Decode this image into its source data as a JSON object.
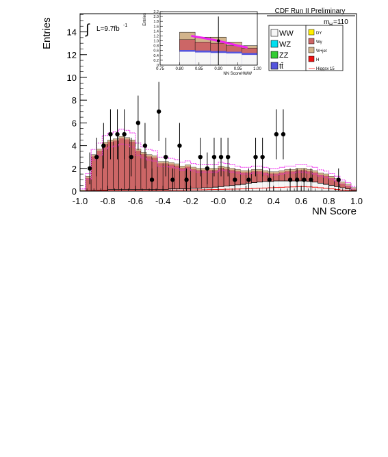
{
  "chart_data": {
    "type": "histogram",
    "header": "CDF Run II Preliminary",
    "xlabel": "NN Score",
    "ylabel": "Entries",
    "xlim": [
      -1.0,
      1.0
    ],
    "ylim": [
      0,
      15.6
    ],
    "x_ticks": [
      "-1.0",
      "-0.8",
      "-0.6",
      "-0.4",
      "-0.2",
      "-0.0",
      "0.2",
      "0.4",
      "0.6",
      "0.8",
      "1.0"
    ],
    "y_ticks": [
      "0",
      "2",
      "4",
      "6",
      "8",
      "10",
      "12",
      "14"
    ],
    "luminosity_label": "L=9.7fb",
    "luminosity_sup": "-1",
    "mass_label": "m",
    "mass_sub": "H",
    "mass_value": "=110",
    "bin_edges": [
      -1.0,
      -0.96,
      -0.92,
      -0.88,
      -0.84,
      -0.8,
      -0.76,
      -0.72,
      -0.68,
      -0.64,
      -0.6,
      -0.56,
      -0.52,
      -0.48,
      -0.44,
      -0.4,
      -0.36,
      -0.32,
      -0.28,
      -0.24,
      -0.2,
      -0.16,
      -0.12,
      -0.08,
      -0.04,
      0.0,
      0.04,
      0.08,
      0.12,
      0.16,
      0.2,
      0.24,
      0.28,
      0.32,
      0.36,
      0.4,
      0.44,
      0.48,
      0.52,
      0.56,
      0.6,
      0.64,
      0.68,
      0.72,
      0.76,
      0.8,
      0.84,
      0.88,
      0.92,
      0.96,
      1.0
    ],
    "stack_total": [
      0.1,
      1.3,
      3.2,
      3.7,
      4.3,
      4.5,
      4.6,
      4.8,
      4.7,
      4.5,
      3.7,
      3.4,
      3.2,
      3.1,
      2.6,
      2.6,
      2.5,
      2.4,
      2.2,
      2.3,
      2.1,
      2.0,
      2.0,
      2.0,
      2.0,
      2.2,
      2.1,
      2.0,
      1.9,
      1.8,
      1.8,
      1.9,
      1.9,
      1.8,
      1.7,
      1.7,
      1.8,
      1.9,
      1.9,
      2.0,
      2.0,
      1.9,
      1.8,
      1.6,
      1.5,
      1.3,
      1.1,
      0.8,
      0.6,
      0.3
    ],
    "bkg_white_ww": [
      0.0,
      0.05,
      0.1,
      0.1,
      0.1,
      0.15,
      0.15,
      0.15,
      0.15,
      0.15,
      0.15,
      0.15,
      0.15,
      0.15,
      0.15,
      0.15,
      0.2,
      0.2,
      0.2,
      0.2,
      0.25,
      0.25,
      0.3,
      0.3,
      0.35,
      0.4,
      0.45,
      0.5,
      0.55,
      0.6,
      0.7,
      0.75,
      0.8,
      0.85,
      0.85,
      0.9,
      0.9,
      0.9,
      0.9,
      0.9,
      0.9,
      0.85,
      0.8,
      0.7,
      0.6,
      0.5,
      0.4,
      0.3,
      0.2,
      0.1
    ],
    "signal_line": [
      0.0,
      0.02,
      0.04,
      0.05,
      0.06,
      0.07,
      0.07,
      0.08,
      0.08,
      0.08,
      0.08,
      0.08,
      0.08,
      0.08,
      0.09,
      0.09,
      0.1,
      0.1,
      0.1,
      0.11,
      0.12,
      0.12,
      0.13,
      0.14,
      0.15,
      0.16,
      0.17,
      0.18,
      0.19,
      0.2,
      0.22,
      0.24,
      0.26,
      0.28,
      0.3,
      0.32,
      0.34,
      0.36,
      0.38,
      0.4,
      0.4,
      0.38,
      0.35,
      0.3,
      0.25,
      0.2,
      0.15,
      0.1,
      0.06,
      0.03
    ],
    "data_points": [
      {
        "x": -0.93,
        "y": 2,
        "err": 1.4
      },
      {
        "x": -0.88,
        "y": 3,
        "err": 1.7
      },
      {
        "x": -0.83,
        "y": 4,
        "err": 2.0
      },
      {
        "x": -0.78,
        "y": 5,
        "err": 2.2
      },
      {
        "x": -0.73,
        "y": 5,
        "err": 2.2
      },
      {
        "x": -0.68,
        "y": 5,
        "err": 2.2
      },
      {
        "x": -0.63,
        "y": 3,
        "err": 1.7
      },
      {
        "x": -0.58,
        "y": 6,
        "err": 2.4
      },
      {
        "x": -0.53,
        "y": 4,
        "err": 2.0
      },
      {
        "x": -0.48,
        "y": 1,
        "err": 1.0
      },
      {
        "x": -0.43,
        "y": 7,
        "err": 2.6
      },
      {
        "x": -0.38,
        "y": 3,
        "err": 1.7
      },
      {
        "x": -0.33,
        "y": 1,
        "err": 1.0
      },
      {
        "x": -0.28,
        "y": 4,
        "err": 2.0
      },
      {
        "x": -0.23,
        "y": 1,
        "err": 1.0
      },
      {
        "x": -0.13,
        "y": 3,
        "err": 1.7
      },
      {
        "x": -0.08,
        "y": 2,
        "err": 1.4
      },
      {
        "x": -0.03,
        "y": 3,
        "err": 1.7
      },
      {
        "x": 0.02,
        "y": 3,
        "err": 1.7
      },
      {
        "x": 0.07,
        "y": 3,
        "err": 1.7
      },
      {
        "x": 0.12,
        "y": 1,
        "err": 1.0
      },
      {
        "x": 0.22,
        "y": 1,
        "err": 1.0
      },
      {
        "x": 0.27,
        "y": 3,
        "err": 1.7
      },
      {
        "x": 0.32,
        "y": 3,
        "err": 1.7
      },
      {
        "x": 0.37,
        "y": 1,
        "err": 1.0
      },
      {
        "x": 0.42,
        "y": 5,
        "err": 2.2
      },
      {
        "x": 0.47,
        "y": 5,
        "err": 2.2
      },
      {
        "x": 0.52,
        "y": 1,
        "err": 1.0
      },
      {
        "x": 0.57,
        "y": 1,
        "err": 1.0
      },
      {
        "x": 0.62,
        "y": 1,
        "err": 1.0
      },
      {
        "x": 0.67,
        "y": 1,
        "err": 1.0
      },
      {
        "x": 0.87,
        "y": 1,
        "err": 1.0
      }
    ],
    "legend": [
      {
        "label": "WW",
        "color": "#f6f6f6"
      },
      {
        "label": "WZ",
        "color": "#00e0f0"
      },
      {
        "label": "ZZ",
        "color": "#33cc33"
      },
      {
        "label": "tt̄",
        "color": "#5555dd"
      },
      {
        "label": "DY",
        "color": "#ffee00"
      },
      {
        "label": "Wγ",
        "color": "#cc6666"
      },
      {
        "label": "W+jet",
        "color": "#d2b48c"
      },
      {
        "label": "H",
        "color": "#ee1111"
      },
      {
        "label": "Higgsx 15",
        "color": "#ff4444"
      }
    ],
    "inset": {
      "xlabel": "NN ScoreHWW",
      "ylabel": "Entries",
      "xlim": [
        0.75,
        1.0
      ],
      "ylim": [
        0,
        2.2
      ],
      "x_ticks": [
        "0.75",
        "0.80",
        "0.85",
        "0.90",
        "0.95",
        "1.00"
      ],
      "y_ticks": [
        "0",
        "0.2",
        "0.4",
        "0.6",
        "0.8",
        "1.0",
        "1.2",
        "1.4",
        "1.6",
        "1.8",
        "2.0",
        "2.2"
      ],
      "bin_edges": [
        0.8,
        0.84,
        0.88,
        0.92,
        0.96,
        1.0
      ],
      "wjet_top": [
        1.35,
        1.15,
        1.15,
        0.95,
        0.8
      ],
      "wgamma_top": [
        1.05,
        0.95,
        0.9,
        0.8,
        0.7
      ],
      "ttbar_top": [
        0.62,
        0.6,
        0.58,
        0.55,
        0.5
      ],
      "ww_top": [
        0.55,
        0.52,
        0.5,
        0.48,
        0.42
      ],
      "signal_points": [
        {
          "x": 0.83,
          "y": 1.2
        },
        {
          "x": 0.86,
          "y": 1.12
        },
        {
          "x": 0.89,
          "y": 1.03
        },
        {
          "x": 0.92,
          "y": 0.92
        },
        {
          "x": 0.95,
          "y": 0.8
        },
        {
          "x": 0.975,
          "y": 0.72
        }
      ],
      "data_point": {
        "x": 0.9,
        "y": 1.0,
        "err": 1.0
      }
    }
  }
}
